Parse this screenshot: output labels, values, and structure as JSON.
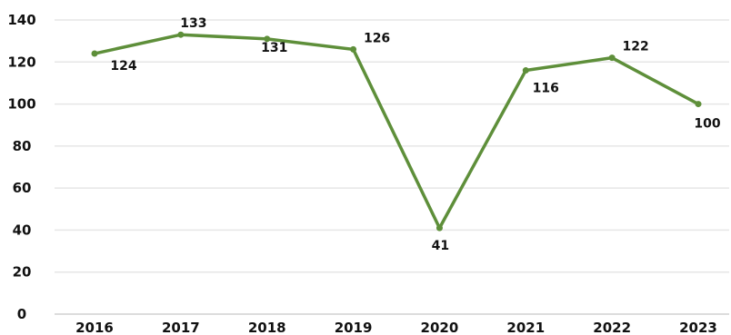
{
  "chart_data": {
    "type": "line",
    "title": "",
    "xlabel": "",
    "ylabel": "",
    "categories": [
      "2016",
      "2017",
      "2018",
      "2019",
      "2020",
      "2021",
      "2022",
      "2023"
    ],
    "series": [
      {
        "values": [
          124,
          133,
          131,
          126,
          41,
          116,
          122,
          100
        ],
        "color": "#5e8f3a"
      }
    ],
    "data_labels": [
      "124",
      "133",
      "131",
      "126",
      "41",
      "116",
      "122",
      "100"
    ],
    "ylim": [
      0,
      140
    ],
    "yticks": [
      0,
      20,
      40,
      60,
      80,
      100,
      120,
      140
    ],
    "ytick_labels": [
      "0",
      "20",
      "40",
      "60",
      "80",
      "100",
      "120",
      "140"
    ],
    "grid": true,
    "legend": "none"
  }
}
